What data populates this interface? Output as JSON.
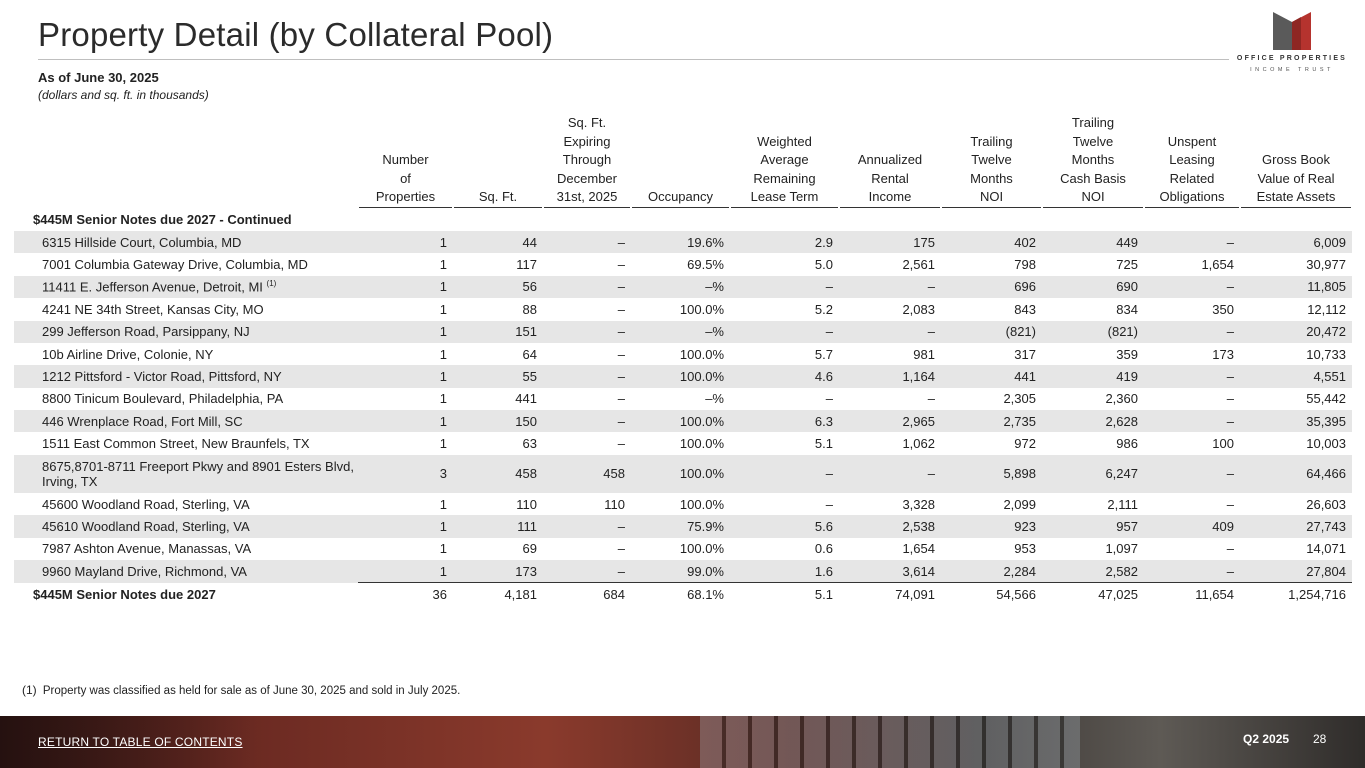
{
  "header": {
    "title": "Property Detail (by Collateral Pool)",
    "as_of": "As of June 30, 2025",
    "units": "(dollars and sq. ft. in thousands)"
  },
  "logo": {
    "line1": "OFFICE PROPERTIES",
    "line2": "INCOME TRUST",
    "colors": {
      "dark": "#5a5a5a",
      "red": "#b5332e"
    }
  },
  "table": {
    "columns": [
      "Number of Properties",
      "Sq. Ft.",
      "Sq. Ft. Expiring Through December 31st, 2025",
      "Occupancy",
      "Weighted Average Remaining Lease Term",
      "Annualized Rental Income",
      "Trailing Twelve Months NOI",
      "Trailing Twelve Months Cash Basis NOI",
      "Unspent Leasing Related Obligations",
      "Gross Book Value of Real Estate Assets"
    ],
    "header_lines": [
      [
        "Number",
        "of",
        "Properties"
      ],
      [
        "Sq. Ft."
      ],
      [
        "Sq. Ft.",
        "Expiring",
        "Through",
        "December",
        "31st, 2025"
      ],
      [
        "Occupancy"
      ],
      [
        "Weighted",
        "Average",
        "Remaining",
        "Lease Term"
      ],
      [
        "Annualized",
        "Rental",
        "Income"
      ],
      [
        "Trailing",
        "Twelve",
        "Months",
        "NOI"
      ],
      [
        "Trailing",
        "Twelve",
        "Months",
        "Cash Basis",
        "NOI"
      ],
      [
        "Unspent",
        "Leasing",
        "Related",
        "Obligations"
      ],
      [
        "Gross Book",
        "Value of Real",
        "Estate Assets"
      ]
    ],
    "section_label": "$445M Senior Notes due 2027 - Continued",
    "rows": [
      {
        "name": "6315 Hillside Court, Columbia, MD",
        "values": [
          "1",
          "44",
          "–",
          "19.6%",
          "2.9",
          "175",
          "402",
          "449",
          "–",
          "6,009"
        ]
      },
      {
        "name": "7001 Columbia Gateway Drive, Columbia, MD",
        "values": [
          "1",
          "117",
          "–",
          "69.5%",
          "5.0",
          "2,561",
          "798",
          "725",
          "1,654",
          "30,977"
        ]
      },
      {
        "name": "11411 E. Jefferson Avenue, Detroit, MI",
        "note": "(1)",
        "values": [
          "1",
          "56",
          "–",
          "–%",
          "–",
          "–",
          "696",
          "690",
          "–",
          "11,805"
        ]
      },
      {
        "name": "4241 NE 34th Street, Kansas City, MO",
        "values": [
          "1",
          "88",
          "–",
          "100.0%",
          "5.2",
          "2,083",
          "843",
          "834",
          "350",
          "12,112"
        ]
      },
      {
        "name": "299 Jefferson Road, Parsippany, NJ",
        "values": [
          "1",
          "151",
          "–",
          "–%",
          "–",
          "–",
          "(821)",
          "(821)",
          "–",
          "20,472"
        ]
      },
      {
        "name": "10b Airline Drive, Colonie, NY",
        "values": [
          "1",
          "64",
          "–",
          "100.0%",
          "5.7",
          "981",
          "317",
          "359",
          "173",
          "10,733"
        ]
      },
      {
        "name": "1212 Pittsford - Victor Road, Pittsford, NY",
        "values": [
          "1",
          "55",
          "–",
          "100.0%",
          "4.6",
          "1,164",
          "441",
          "419",
          "–",
          "4,551"
        ]
      },
      {
        "name": "8800 Tinicum Boulevard, Philadelphia, PA",
        "values": [
          "1",
          "441",
          "–",
          "–%",
          "–",
          "–",
          "2,305",
          "2,360",
          "–",
          "55,442"
        ]
      },
      {
        "name": "446 Wrenplace Road, Fort Mill, SC",
        "values": [
          "1",
          "150",
          "–",
          "100.0%",
          "6.3",
          "2,965",
          "2,735",
          "2,628",
          "–",
          "35,395"
        ]
      },
      {
        "name": "1511 East Common Street, New Braunfels, TX",
        "values": [
          "1",
          "63",
          "–",
          "100.0%",
          "5.1",
          "1,062",
          "972",
          "986",
          "100",
          "10,003"
        ]
      },
      {
        "name": "8675,8701-8711 Freeport Pkwy and 8901 Esters Blvd, Irving, TX",
        "values": [
          "3",
          "458",
          "458",
          "100.0%",
          "–",
          "–",
          "5,898",
          "6,247",
          "–",
          "64,466"
        ]
      },
      {
        "name": "45600 Woodland Road, Sterling, VA",
        "values": [
          "1",
          "110",
          "110",
          "100.0%",
          "–",
          "3,328",
          "2,099",
          "2,111",
          "–",
          "26,603"
        ]
      },
      {
        "name": "45610 Woodland Road, Sterling, VA",
        "values": [
          "1",
          "111",
          "–",
          "75.9%",
          "5.6",
          "2,538",
          "923",
          "957",
          "409",
          "27,743"
        ]
      },
      {
        "name": "7987 Ashton Avenue, Manassas, VA",
        "values": [
          "1",
          "69",
          "–",
          "100.0%",
          "0.6",
          "1,654",
          "953",
          "1,097",
          "–",
          "14,071"
        ]
      },
      {
        "name": "9960 Mayland Drive, Richmond, VA",
        "values": [
          "1",
          "173",
          "–",
          "99.0%",
          "1.6",
          "3,614",
          "2,284",
          "2,582",
          "–",
          "27,804"
        ]
      }
    ],
    "total": {
      "name": "$445M Senior Notes due 2027",
      "values": [
        "36",
        "4,181",
        "684",
        "68.1%",
        "5.1",
        "74,091",
        "54,566",
        "47,025",
        "11,654",
        "1,254,716"
      ]
    }
  },
  "footnote": {
    "mark": "(1)",
    "text": "Property was classified as held for sale as of June 30, 2025 and sold in July 2025."
  },
  "footer": {
    "link": "RETURN TO TABLE OF CONTENTS",
    "quarter": "Q2 2025",
    "page": "28"
  }
}
